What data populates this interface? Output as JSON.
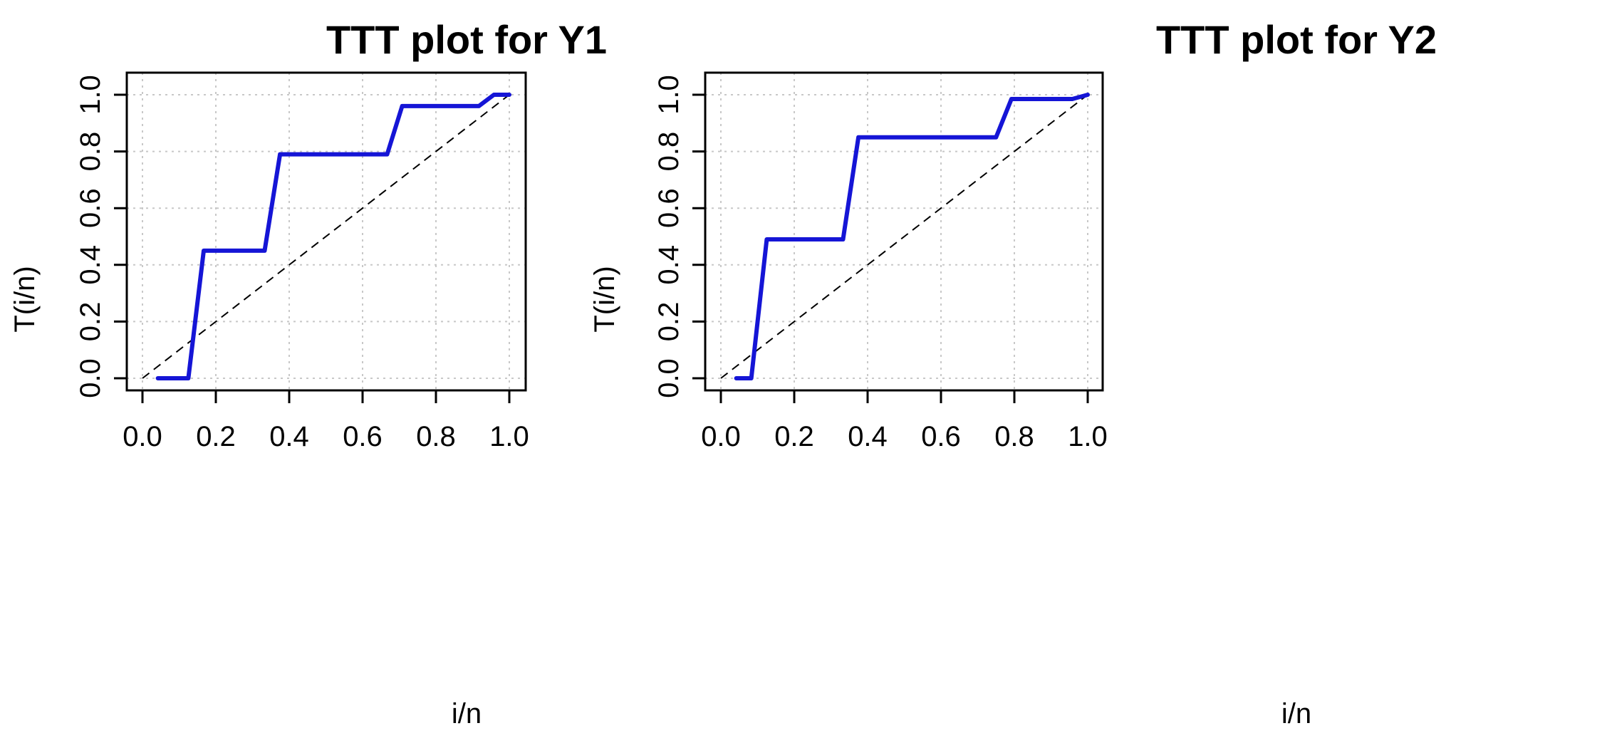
{
  "colors": {
    "curve": "#1515d6",
    "reference": "#000000",
    "grid": "#c8c8c8"
  },
  "chart_data": [
    {
      "type": "line",
      "title": "TTT plot for Y1",
      "xlabel": "i/n",
      "ylabel": "T(i/n)",
      "xlim": [
        0,
        1
      ],
      "ylim": [
        0,
        1
      ],
      "xticks": [
        "0.0",
        "0.2",
        "0.4",
        "0.6",
        "0.8",
        "1.0"
      ],
      "yticks": [
        "0.0",
        "0.2",
        "0.4",
        "0.6",
        "0.8",
        "1.0"
      ],
      "grid": true,
      "series": [
        {
          "x": [
            0.042,
            0.125,
            0.167,
            0.333,
            0.375,
            0.667,
            0.708,
            0.917,
            0.958,
            1.0
          ],
          "y": [
            0.0,
            0.0,
            0.45,
            0.45,
            0.79,
            0.79,
            0.96,
            0.96,
            1.0,
            1.0
          ]
        }
      ],
      "reference_line": {
        "x": [
          0,
          1
        ],
        "y": [
          0,
          1
        ]
      }
    },
    {
      "type": "line",
      "title": "TTT plot for Y2",
      "xlabel": "i/n",
      "ylabel": "T(i/n)",
      "xlim": [
        0,
        1
      ],
      "ylim": [
        0,
        1
      ],
      "xticks": [
        "0.0",
        "0.2",
        "0.4",
        "0.6",
        "0.8",
        "1.0"
      ],
      "yticks": [
        "0.0",
        "0.2",
        "0.4",
        "0.6",
        "0.8",
        "1.0"
      ],
      "grid": true,
      "series": [
        {
          "x": [
            0.042,
            0.083,
            0.125,
            0.333,
            0.375,
            0.75,
            0.792,
            0.958,
            1.0
          ],
          "y": [
            0.0,
            0.0,
            0.49,
            0.49,
            0.85,
            0.85,
            0.985,
            0.985,
            1.0
          ]
        }
      ],
      "reference_line": {
        "x": [
          0,
          1
        ],
        "y": [
          0,
          1
        ]
      }
    }
  ]
}
